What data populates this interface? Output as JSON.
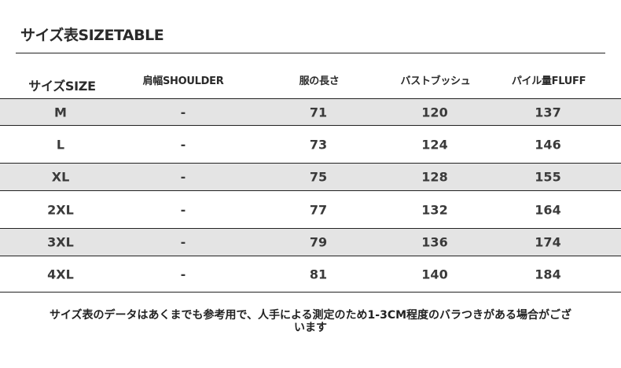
{
  "title": "サイズ表SIZETABLE",
  "headers": [
    "サイズSIZE",
    "肩幅SHOULDER",
    "服の長さ",
    "バストブッシュ",
    "パイル量FLUFF"
  ],
  "rows": [
    [
      "M",
      "-",
      "71",
      "120",
      "137"
    ],
    [
      "L",
      "-",
      "73",
      "124",
      "146"
    ],
    [
      "XL",
      "-",
      "75",
      "128",
      "155"
    ],
    [
      "2XL",
      "-",
      "77",
      "132",
      "164"
    ],
    [
      "3XL",
      "-",
      "79",
      "136",
      "174"
    ],
    [
      "4XL",
      "-",
      "81",
      "140",
      "184"
    ]
  ],
  "shade_color": "#e4e4e4",
  "note": "サイズ表のデータはあくまでも参考用で、人手による測定のため1-3CM程度のバラつきがある場合がございます"
}
